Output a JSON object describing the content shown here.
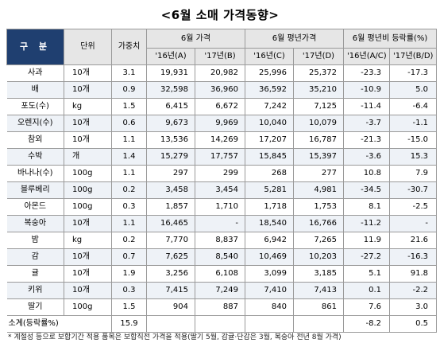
{
  "title": "<6월 소매 가격동향>",
  "headers": {
    "category": "구 분",
    "unit": "단위",
    "weight": "가중치",
    "price_group": "6월 가격",
    "avg_group": "6월 평년가격",
    "rate_group": "6월 평년비 등락률(%)",
    "price_16": "'16년(A)",
    "price_17": "'17년(B)",
    "avg_16": "'16년(C)",
    "avg_17": "'17년(D)",
    "rate_16": "'16년(A/C)",
    "rate_17": "'17년(B/D)"
  },
  "rows": [
    {
      "item": "사과",
      "unit": "10개",
      "weight": "3.1",
      "a": "19,931",
      "b": "20,982",
      "c": "25,996",
      "d": "25,372",
      "r1": "-23.3",
      "r2": "-17.3"
    },
    {
      "item": "배",
      "unit": "10개",
      "weight": "0.9",
      "a": "32,598",
      "b": "36,960",
      "c": "36,592",
      "d": "35,210",
      "r1": "-10.9",
      "r2": "5.0"
    },
    {
      "item": "포도(수)",
      "unit": "kg",
      "weight": "1.5",
      "a": "6,415",
      "b": "6,672",
      "c": "7,242",
      "d": "7,125",
      "r1": "-11.4",
      "r2": "-6.4"
    },
    {
      "item": "오렌지(수)",
      "unit": "10개",
      "weight": "0.6",
      "a": "9,673",
      "b": "9,969",
      "c": "10,040",
      "d": "10,079",
      "r1": "-3.7",
      "r2": "-1.1"
    },
    {
      "item": "참외",
      "unit": "10개",
      "weight": "1.1",
      "a": "13,536",
      "b": "14,269",
      "c": "17,207",
      "d": "16,787",
      "r1": "-21.3",
      "r2": "-15.0"
    },
    {
      "item": "수박",
      "unit": "개",
      "weight": "1.4",
      "a": "15,279",
      "b": "17,757",
      "c": "15,845",
      "d": "15,397",
      "r1": "-3.6",
      "r2": "15.3"
    },
    {
      "item": "바나나(수)",
      "unit": "100g",
      "weight": "1.1",
      "a": "297",
      "b": "299",
      "c": "268",
      "d": "277",
      "r1": "10.8",
      "r2": "7.9"
    },
    {
      "item": "블루베리",
      "unit": "100g",
      "weight": "0.2",
      "a": "3,458",
      "b": "3,454",
      "c": "5,281",
      "d": "4,981",
      "r1": "-34.5",
      "r2": "-30.7"
    },
    {
      "item": "아몬드",
      "unit": "100g",
      "weight": "0.3",
      "a": "1,857",
      "b": "1,710",
      "c": "1,718",
      "d": "1,753",
      "r1": "8.1",
      "r2": "-2.5"
    },
    {
      "item": "복숭아",
      "unit": "10개",
      "weight": "1.1",
      "a": "16,465",
      "b": "-",
      "c": "18,540",
      "d": "16,766",
      "r1": "-11.2",
      "r2": "-"
    },
    {
      "item": "밤",
      "unit": "kg",
      "weight": "0.2",
      "a": "7,770",
      "b": "8,837",
      "c": "6,942",
      "d": "7,265",
      "r1": "11.9",
      "r2": "21.6"
    },
    {
      "item": "감",
      "unit": "10개",
      "weight": "0.7",
      "a": "7,625",
      "b": "8,540",
      "c": "10,469",
      "d": "10,203",
      "r1": "-27.2",
      "r2": "-16.3"
    },
    {
      "item": "귤",
      "unit": "10개",
      "weight": "1.9",
      "a": "3,256",
      "b": "6,108",
      "c": "3,099",
      "d": "3,185",
      "r1": "5.1",
      "r2": "91.8"
    },
    {
      "item": "키위",
      "unit": "10개",
      "weight": "0.3",
      "a": "7,415",
      "b": "7,249",
      "c": "7,410",
      "d": "7,413",
      "r1": "0.1",
      "r2": "-2.2"
    },
    {
      "item": "딸기",
      "unit": "100g",
      "weight": "1.5",
      "a": "904",
      "b": "887",
      "c": "840",
      "d": "861",
      "r1": "7.6",
      "r2": "3.0"
    }
  ],
  "subtotal": {
    "label": "소계(등락률%)",
    "weight": "15.9",
    "r1": "-8.2",
    "r2": "0.5"
  },
  "note": "* 계절성 등으로 보합기간 적용 품목은 보합직전 가격을 적용(딸기 5월, 감귤·단감은 3월, 복숭아 전년 8월 가격)"
}
